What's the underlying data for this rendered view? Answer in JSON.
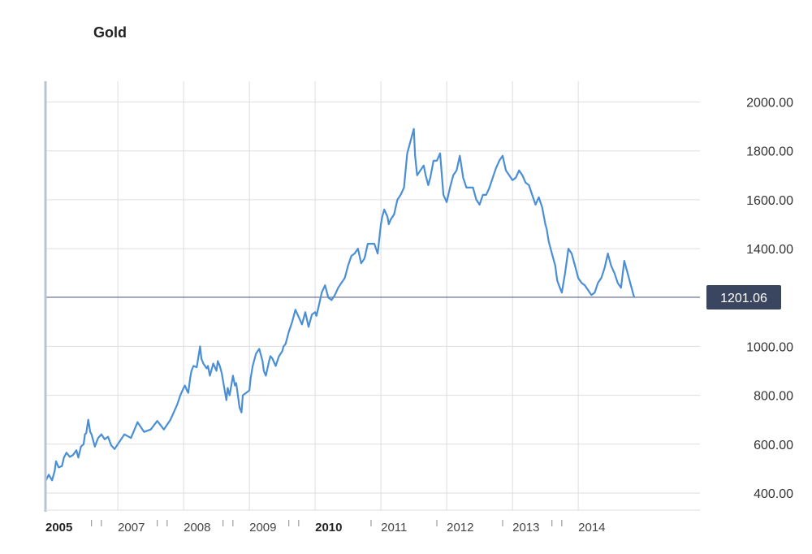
{
  "title": "Gold",
  "colors": {
    "line": "#4a8fd6",
    "grid": "#dddddd",
    "baseline": "#5d5f8a",
    "badge": "#3a4660",
    "axis": "#b5c4d6"
  },
  "chart_data": {
    "type": "line",
    "title": "Gold",
    "xlabel": "",
    "ylabel": "",
    "ylim": [
      330,
      2085
    ],
    "xlim": [
      2005.0,
      2014.95
    ],
    "yticks": [
      400,
      600,
      800,
      1000,
      1200,
      1400,
      1600,
      1800,
      2000
    ],
    "ytick_labels": [
      "400.00",
      "600.00",
      "800.00",
      "1000.00",
      "1400.00",
      "1600.00",
      "1800.00",
      "2000.00"
    ],
    "xticks": [
      {
        "label": "2005",
        "x": 2005.0,
        "bold": true
      },
      {
        "label": "2007",
        "x": 2006.1,
        "bold": false
      },
      {
        "label": "2008",
        "x": 2007.1,
        "bold": false
      },
      {
        "label": "2009",
        "x": 2008.1,
        "bold": false
      },
      {
        "label": "2010",
        "x": 2009.1,
        "bold": true
      },
      {
        "label": "2011",
        "x": 2010.1,
        "bold": false
      },
      {
        "label": "2012",
        "x": 2011.1,
        "bold": false
      },
      {
        "label": "2013",
        "x": 2012.1,
        "bold": false
      },
      {
        "label": "2014",
        "x": 2013.1,
        "bold": false
      }
    ],
    "minor_ticks": [
      2005.7,
      2005.85,
      2006.7,
      2006.85,
      2007.7,
      2007.85,
      2008.7,
      2008.85,
      2009.95,
      2010.95,
      2011.95,
      2012.7,
      2012.85
    ],
    "current_value": 1201.06,
    "current_label": "1201.06",
    "series": [
      {
        "x": [
          2005.0,
          2005.05,
          2005.1,
          2005.14,
          2005.16,
          2005.2,
          2005.25,
          2005.28,
          2005.32,
          2005.37,
          2005.42,
          2005.47,
          2005.5,
          2005.54,
          2005.58,
          2005.6,
          2005.62,
          2005.65,
          2005.68,
          2005.7,
          2005.75,
          2005.8,
          2005.85,
          2005.9,
          2005.95,
          2006.0,
          2006.05,
          2006.1,
          2006.2,
          2006.3,
          2006.4,
          2006.5,
          2006.55,
          2006.6,
          2006.7,
          2006.8,
          2006.9,
          2007.0,
          2007.05,
          2007.1,
          2007.12,
          2007.15,
          2007.17,
          2007.2,
          2007.22,
          2007.25,
          2007.3,
          2007.35,
          2007.37,
          2007.4,
          2007.45,
          2007.47,
          2007.5,
          2007.55,
          2007.6,
          2007.62,
          2007.65,
          2007.68,
          2007.75,
          2007.77,
          2007.8,
          2007.85,
          2007.88,
          2007.9,
          2007.95,
          2007.98,
          2008.0,
          2008.05,
          2008.1,
          2008.12,
          2008.15,
          2008.2,
          2008.25,
          2008.3,
          2008.32,
          2008.35,
          2008.4,
          2008.42,
          2008.45,
          2008.5,
          2008.55,
          2008.6,
          2008.62,
          2008.65,
          2008.7,
          2008.75,
          2008.8,
          2008.85,
          2008.9,
          2008.95,
          2009.0,
          2009.05,
          2009.1,
          2009.12,
          2009.15,
          2009.2,
          2009.25,
          2009.3,
          2009.35,
          2009.4,
          2009.45,
          2009.5,
          2009.55,
          2009.6,
          2009.65,
          2009.7,
          2009.75,
          2009.8,
          2009.85,
          2009.9,
          2010.0,
          2010.05,
          2010.1,
          2010.12,
          2010.15,
          2010.2,
          2010.22,
          2010.25,
          2010.3,
          2010.35,
          2010.4,
          2010.45,
          2010.5,
          2010.55,
          2010.6,
          2010.62,
          2010.65,
          2010.7,
          2010.75,
          2010.78,
          2010.82,
          2010.85,
          2010.9,
          2010.95,
          2011.0,
          2011.05,
          2011.1,
          2011.15,
          2011.2,
          2011.25,
          2011.3,
          2011.35,
          2011.4,
          2011.45,
          2011.5,
          2011.55,
          2011.6,
          2011.65,
          2011.7,
          2011.75,
          2011.8,
          2011.85,
          2011.9,
          2011.95,
          2012.0,
          2012.05,
          2012.1,
          2012.15,
          2012.2,
          2012.25,
          2012.3,
          2012.35,
          2012.4,
          2012.45,
          2012.5,
          2012.55,
          2012.6,
          2012.62,
          2012.65,
          2012.7,
          2012.75,
          2012.78,
          2012.82,
          2012.85,
          2012.9,
          2012.95,
          2013.0,
          2013.05,
          2013.1,
          2013.15,
          2013.2,
          2013.25,
          2013.3,
          2013.35,
          2013.4,
          2013.45,
          2013.5,
          2013.55,
          2013.6,
          2013.65,
          2013.7,
          2013.75,
          2013.8,
          2013.85,
          2013.9,
          2013.95
        ],
        "y": [
          448,
          475,
          452,
          490,
          530,
          505,
          510,
          545,
          565,
          548,
          556,
          575,
          545,
          590,
          600,
          640,
          645,
          700,
          650,
          640,
          590,
          625,
          640,
          620,
          630,
          595,
          580,
          600,
          640,
          625,
          690,
          650,
          655,
          660,
          695,
          660,
          700,
          760,
          800,
          830,
          840,
          820,
          810,
          870,
          900,
          920,
          915,
          1000,
          950,
          930,
          910,
          920,
          880,
          930,
          900,
          940,
          920,
          890,
          780,
          830,
          800,
          880,
          840,
          850,
          750,
          730,
          800,
          810,
          820,
          870,
          920,
          970,
          990,
          940,
          900,
          880,
          940,
          960,
          950,
          920,
          960,
          980,
          1000,
          1010,
          1060,
          1100,
          1150,
          1120,
          1090,
          1140,
          1080,
          1130,
          1140,
          1125,
          1160,
          1220,
          1250,
          1200,
          1190,
          1210,
          1240,
          1260,
          1280,
          1330,
          1370,
          1380,
          1400,
          1340,
          1360,
          1420,
          1420,
          1380,
          1500,
          1530,
          1560,
          1530,
          1500,
          1520,
          1540,
          1600,
          1620,
          1650,
          1790,
          1840,
          1890,
          1780,
          1700,
          1720,
          1740,
          1700,
          1660,
          1690,
          1760,
          1760,
          1790,
          1620,
          1590,
          1650,
          1700,
          1720,
          1780,
          1690,
          1650,
          1650,
          1650,
          1600,
          1580,
          1620,
          1620,
          1650,
          1690,
          1730,
          1760,
          1780,
          1720,
          1700,
          1680,
          1690,
          1720,
          1700,
          1670,
          1660,
          1620,
          1580,
          1610,
          1570,
          1500,
          1480,
          1430,
          1380,
          1330,
          1270,
          1240,
          1220,
          1300,
          1400,
          1380,
          1330,
          1280,
          1260,
          1250,
          1230,
          1210,
          1220,
          1260,
          1280,
          1320,
          1380,
          1330,
          1300,
          1260,
          1240,
          1350,
          1300,
          1250,
          1201
        ]
      }
    ]
  }
}
